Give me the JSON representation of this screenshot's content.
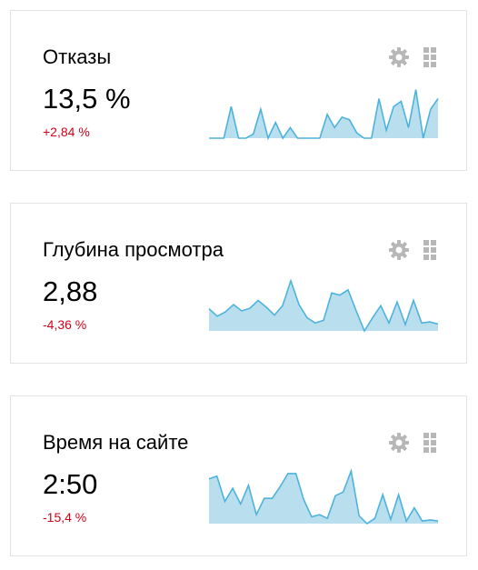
{
  "colors": {
    "negative_change": "#d0021b",
    "sparkline_fill": "#b9dfef",
    "sparkline_stroke": "#4db3dc",
    "icon": "#b7b7b7",
    "card_border": "#e3e3e3"
  },
  "widgets": [
    {
      "title": "Отказы",
      "value": "13,5 %",
      "change": "+2,84 %",
      "icons": [
        "gear-icon",
        "drag-handle-icon"
      ],
      "sparkline": [
        0,
        0,
        0,
        0.6,
        0,
        0,
        0.08,
        0.55,
        0,
        0.3,
        0,
        0.2,
        0,
        0,
        0,
        0,
        0.45,
        0.2,
        0.4,
        0.35,
        0.1,
        0,
        0,
        0.75,
        0.15,
        0.6,
        0.7,
        0.2,
        0.92,
        0,
        0.55,
        0.75
      ]
    },
    {
      "title": "Глубина просмотра",
      "value": "2,88",
      "change": "-4,36 %",
      "icons": [
        "gear-icon",
        "drag-handle-icon"
      ],
      "sparkline": [
        0.42,
        0.28,
        0.36,
        0.5,
        0.38,
        0.43,
        0.58,
        0.45,
        0.3,
        0.48,
        0.95,
        0.5,
        0.25,
        0.15,
        0.2,
        0.72,
        0.68,
        0.78,
        0.38,
        0,
        0.25,
        0.48,
        0.15,
        0.55,
        0.12,
        0.58,
        0.15,
        0.17,
        0.13
      ]
    },
    {
      "title": "Время на сайте",
      "value": "2:50",
      "change": "-15,4 %",
      "icons": [
        "gear-icon",
        "drag-handle-icon"
      ],
      "sparkline": [
        0.85,
        0.9,
        0.42,
        0.67,
        0.37,
        0.73,
        0.17,
        0.48,
        0.48,
        0.7,
        0.95,
        0.95,
        0.45,
        0.13,
        0.17,
        0.1,
        0.53,
        0.6,
        1.0,
        0.15,
        0,
        0.1,
        0.55,
        0.08,
        0.55,
        0.05,
        0.3,
        0.05,
        0.07,
        0.05
      ]
    }
  ]
}
